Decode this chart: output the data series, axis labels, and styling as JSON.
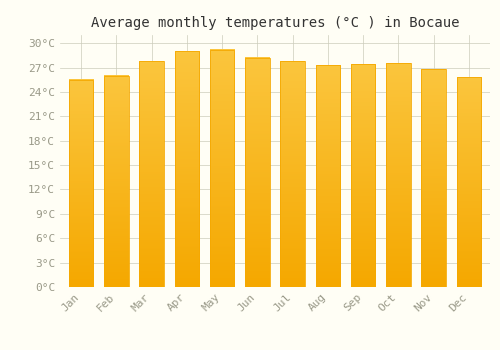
{
  "title": "Average monthly temperatures (°C ) in Bocaue",
  "months": [
    "Jan",
    "Feb",
    "Mar",
    "Apr",
    "May",
    "Jun",
    "Jul",
    "Aug",
    "Sep",
    "Oct",
    "Nov",
    "Dec"
  ],
  "values": [
    25.5,
    26.0,
    27.8,
    29.0,
    29.2,
    28.2,
    27.8,
    27.3,
    27.4,
    27.5,
    26.8,
    25.8
  ],
  "bar_color_light": "#FFD966",
  "bar_color_dark": "#F5A800",
  "background_color": "#FFFEF5",
  "grid_color": "#CCCCBB",
  "ylim": [
    0,
    31
  ],
  "yticks": [
    0,
    3,
    6,
    9,
    12,
    15,
    18,
    21,
    24,
    27,
    30
  ],
  "title_fontsize": 10,
  "tick_fontsize": 8,
  "tick_color": "#999988",
  "font_family": "monospace"
}
